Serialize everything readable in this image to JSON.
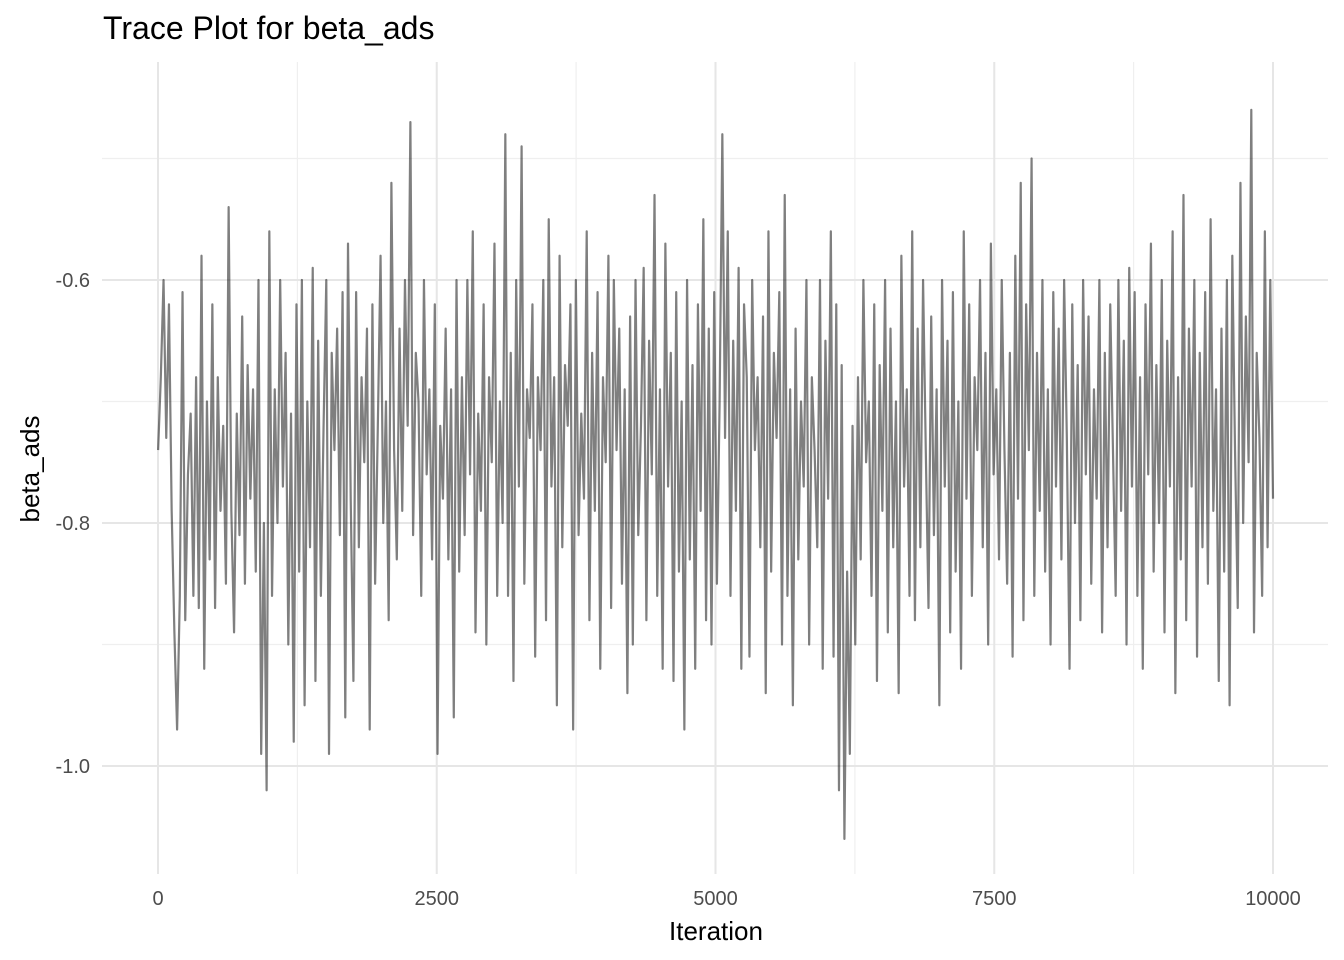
{
  "chart_data": {
    "type": "line",
    "title": "Trace Plot for beta_ads",
    "xlabel": "Iteration",
    "ylabel": "beta_ads",
    "xlim": [
      0,
      10000
    ],
    "ylim": [
      -1.09,
      -0.44
    ],
    "x_ticks": [
      0,
      2500,
      5000,
      7500,
      10000
    ],
    "x_tick_labels": [
      "0",
      "2500",
      "5000",
      "7500",
      "10000"
    ],
    "y_ticks": [
      -1.0,
      -0.8,
      -0.6
    ],
    "y_tick_labels": [
      "-1.0",
      "-0.8",
      "-0.6"
    ],
    "grid": true,
    "legend": "none",
    "line_color": "#000000",
    "line_alpha": 0.5,
    "series": [
      {
        "x_start": 1,
        "x_end": 10000,
        "summary": {
          "mean": -0.74,
          "sd": 0.075,
          "min": -1.06,
          "max": -0.465
        },
        "values": [
          -0.74,
          -0.68,
          -0.6,
          -0.73,
          -0.62,
          -0.79,
          -0.89,
          -0.97,
          -0.86,
          -0.61,
          -0.88,
          -0.76,
          -0.71,
          -0.86,
          -0.68,
          -0.87,
          -0.58,
          -0.92,
          -0.7,
          -0.83,
          -0.62,
          -0.87,
          -0.68,
          -0.79,
          -0.72,
          -0.85,
          -0.54,
          -0.79,
          -0.89,
          -0.71,
          -0.81,
          -0.63,
          -0.85,
          -0.67,
          -0.78,
          -0.69,
          -0.84,
          -0.6,
          -0.99,
          -0.8,
          -1.02,
          -0.56,
          -0.86,
          -0.69,
          -0.8,
          -0.6,
          -0.77,
          -0.66,
          -0.9,
          -0.71,
          -0.98,
          -0.62,
          -0.84,
          -0.6,
          -0.95,
          -0.7,
          -0.82,
          -0.59,
          -0.93,
          -0.65,
          -0.86,
          -0.72,
          -0.6,
          -0.99,
          -0.66,
          -0.74,
          -0.64,
          -0.81,
          -0.61,
          -0.96,
          -0.57,
          -0.78,
          -0.93,
          -0.61,
          -0.82,
          -0.68,
          -0.75,
          -0.64,
          -0.97,
          -0.62,
          -0.85,
          -0.72,
          -0.58,
          -0.8,
          -0.7,
          -0.88,
          -0.52,
          -0.74,
          -0.83,
          -0.64,
          -0.79,
          -0.6,
          -0.72,
          -0.47,
          -0.81,
          -0.66,
          -0.7,
          -0.86,
          -0.6,
          -0.76,
          -0.69,
          -0.83,
          -0.62,
          -0.99,
          -0.72,
          -0.78,
          -0.64,
          -0.83,
          -0.69,
          -0.96,
          -0.6,
          -0.84,
          -0.68,
          -0.81,
          -0.6,
          -0.76,
          -0.56,
          -0.89,
          -0.71,
          -0.79,
          -0.62,
          -0.9,
          -0.68,
          -0.75,
          -0.57,
          -0.86,
          -0.7,
          -0.8,
          -0.48,
          -0.86,
          -0.66,
          -0.93,
          -0.6,
          -0.77,
          -0.49,
          -0.85,
          -0.69,
          -0.73,
          -0.62,
          -0.91,
          -0.68,
          -0.74,
          -0.6,
          -0.88,
          -0.55,
          -0.77,
          -0.68,
          -0.95,
          -0.58,
          -0.82,
          -0.67,
          -0.72,
          -0.62,
          -0.97,
          -0.6,
          -0.81,
          -0.71,
          -0.78,
          -0.56,
          -0.88,
          -0.66,
          -0.79,
          -0.61,
          -0.92,
          -0.68,
          -0.75,
          -0.58,
          -0.87,
          -0.6,
          -0.74,
          -0.64,
          -0.85,
          -0.69,
          -0.94,
          -0.63,
          -0.9,
          -0.6,
          -0.81,
          -0.72,
          -0.59,
          -0.88,
          -0.65,
          -0.76,
          -0.53,
          -0.86,
          -0.69,
          -0.92,
          -0.57,
          -0.77,
          -0.66,
          -0.93,
          -0.61,
          -0.84,
          -0.7,
          -0.97,
          -0.6,
          -0.83,
          -0.67,
          -0.92,
          -0.62,
          -0.79,
          -0.55,
          -0.88,
          -0.64,
          -0.9,
          -0.61,
          -0.85,
          -0.7,
          -0.48,
          -0.73,
          -0.56,
          -0.86,
          -0.65,
          -0.79,
          -0.59,
          -0.92,
          -0.62,
          -0.68,
          -0.91,
          -0.6,
          -0.74,
          -0.68,
          -0.82,
          -0.63,
          -0.94,
          -0.56,
          -0.84,
          -0.66,
          -0.73,
          -0.61,
          -0.9,
          -0.53,
          -0.86,
          -0.69,
          -0.95,
          -0.64,
          -0.83,
          -0.7,
          -0.77,
          -0.6,
          -0.9,
          -0.68,
          -0.74,
          -0.82,
          -0.6,
          -0.92,
          -0.65,
          -0.78,
          -0.56,
          -0.91,
          -0.62,
          -1.02,
          -0.67,
          -1.06,
          -0.84,
          -0.99,
          -0.72,
          -0.9,
          -0.68,
          -0.83,
          -0.6,
          -0.75,
          -0.7,
          -0.86,
          -0.62,
          -0.93,
          -0.67,
          -0.79,
          -0.6,
          -0.89,
          -0.64,
          -0.82,
          -0.7,
          -0.94,
          -0.58,
          -0.77,
          -0.69,
          -0.86,
          -0.56,
          -0.88,
          -0.64,
          -0.82,
          -0.6,
          -0.74,
          -0.87,
          -0.63,
          -0.81,
          -0.69,
          -0.95,
          -0.6,
          -0.77,
          -0.65,
          -0.89,
          -0.61,
          -0.84,
          -0.7,
          -0.92,
          -0.56,
          -0.78,
          -0.62,
          -0.86,
          -0.68,
          -0.74,
          -0.6,
          -0.82,
          -0.66,
          -0.9,
          -0.57,
          -0.76,
          -0.69,
          -0.83,
          -0.6,
          -0.74,
          -0.85,
          -0.66,
          -0.91,
          -0.58,
          -0.78,
          -0.52,
          -0.88,
          -0.62,
          -0.74,
          -0.5,
          -0.86,
          -0.66,
          -0.79,
          -0.6,
          -0.84,
          -0.69,
          -0.9,
          -0.61,
          -0.77,
          -0.64,
          -0.83,
          -0.6,
          -0.73,
          -0.92,
          -0.62,
          -0.8,
          -0.67,
          -0.88,
          -0.6,
          -0.76,
          -0.63,
          -0.85,
          -0.69,
          -0.78,
          -0.6,
          -0.89,
          -0.66,
          -0.82,
          -0.62,
          -0.74,
          -0.86,
          -0.6,
          -0.79,
          -0.65,
          -0.9,
          -0.59,
          -0.77,
          -0.61,
          -0.86,
          -0.68,
          -0.92,
          -0.62,
          -0.76,
          -0.57,
          -0.84,
          -0.67,
          -0.8,
          -0.6,
          -0.89,
          -0.65,
          -0.77,
          -0.56,
          -0.94,
          -0.68,
          -0.83,
          -0.53,
          -0.88,
          -0.64,
          -0.77,
          -0.6,
          -0.91,
          -0.66,
          -0.82,
          -0.61,
          -0.85,
          -0.55,
          -0.79,
          -0.69,
          -0.93,
          -0.64,
          -0.84,
          -0.6,
          -0.95,
          -0.58,
          -0.74,
          -0.87,
          -0.52,
          -0.8,
          -0.63,
          -0.75,
          -0.46,
          -0.89,
          -0.66,
          -0.73,
          -0.86,
          -0.56,
          -0.82,
          -0.6,
          -0.78
        ]
      }
    ]
  }
}
